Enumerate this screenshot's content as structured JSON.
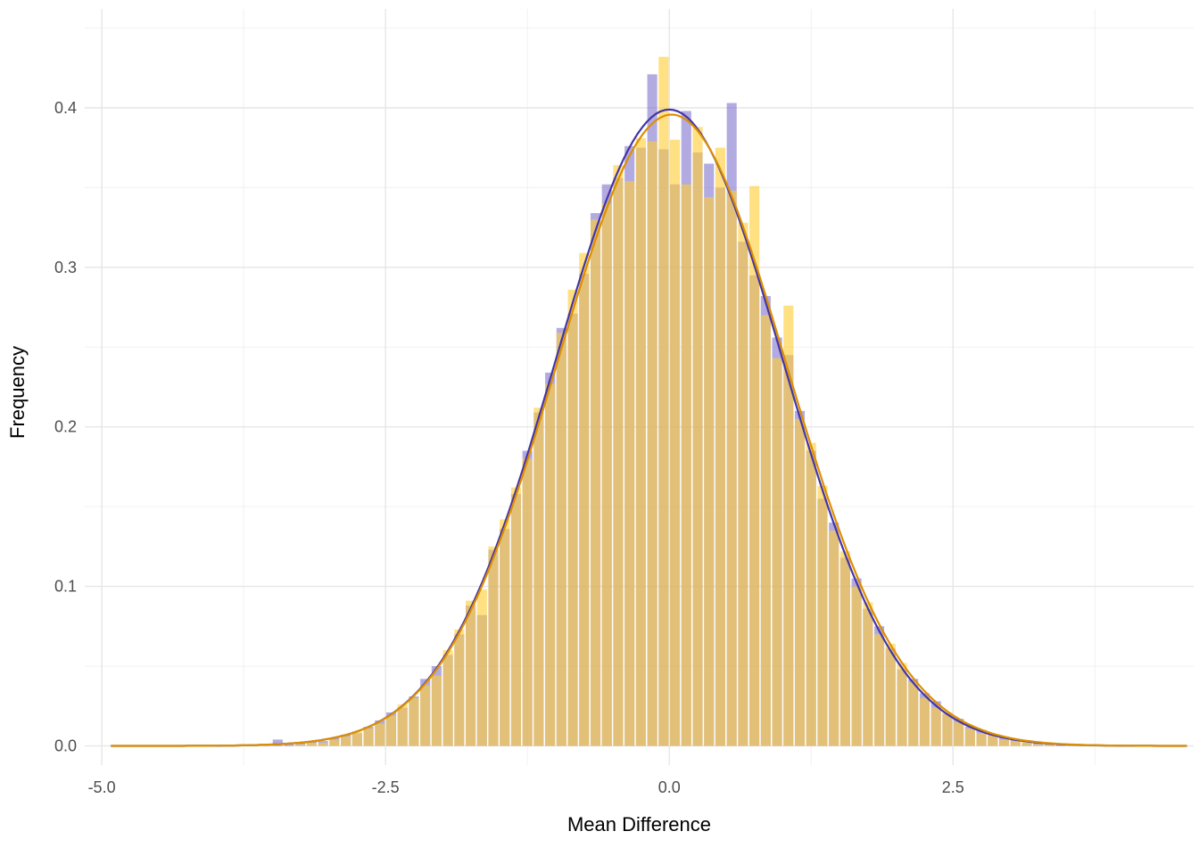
{
  "chart_data": {
    "type": "histogram",
    "title": "",
    "xlabel": "Mean Difference",
    "ylabel": "Frequency",
    "xlim": [
      -5.15,
      4.62
    ],
    "ylim": [
      -0.012,
      0.462
    ],
    "x_ticks": {
      "values": [
        -5.0,
        -2.5,
        0.0,
        2.5
      ],
      "labels": [
        "-5.0",
        "-2.5",
        "0.0",
        "2.5"
      ]
    },
    "y_ticks": {
      "values": [
        0.0,
        0.1,
        0.2,
        0.3,
        0.4
      ],
      "labels": [
        "0.0",
        "0.1",
        "0.2",
        "0.3",
        "0.4"
      ]
    },
    "x_minor": [
      -3.75,
      -1.25,
      1.25,
      3.75
    ],
    "y_minor": [
      0.05,
      0.15,
      0.25,
      0.35,
      0.45
    ],
    "grid": true,
    "grid_color": "#e4e4e4",
    "grid_minor_color": "#f1f1f1",
    "background": "#ffffff",
    "legend": "none",
    "bin_width": 0.1,
    "bin_centers": [
      -3.45,
      -3.35,
      -3.25,
      -3.15,
      -3.05,
      -2.95,
      -2.85,
      -2.75,
      -2.65,
      -2.55,
      -2.45,
      -2.35,
      -2.25,
      -2.15,
      -2.05,
      -1.95,
      -1.85,
      -1.75,
      -1.65,
      -1.55,
      -1.45,
      -1.35,
      -1.25,
      -1.15,
      -1.05,
      -0.95,
      -0.85,
      -0.75,
      -0.65,
      -0.55,
      -0.45,
      -0.35,
      -0.25,
      -0.15,
      -0.05,
      0.05,
      0.15,
      0.25,
      0.35,
      0.45,
      0.55,
      0.65,
      0.75,
      0.85,
      0.95,
      1.05,
      1.15,
      1.25,
      1.35,
      1.45,
      1.55,
      1.65,
      1.75,
      1.85,
      1.95,
      2.05,
      2.15,
      2.25,
      2.35,
      2.45,
      2.55,
      2.65,
      2.75,
      2.85,
      2.95,
      3.05,
      3.15,
      3.25,
      3.35,
      3.45
    ],
    "series": [
      {
        "name": "sample-purple",
        "color": "rgba(108,94,198,0.52)",
        "values": [
          0.004,
          0.001,
          0.002,
          0.003,
          0.003,
          0.005,
          0.007,
          0.008,
          0.012,
          0.016,
          0.021,
          0.024,
          0.031,
          0.042,
          0.05,
          0.057,
          0.07,
          0.088,
          0.082,
          0.123,
          0.136,
          0.158,
          0.185,
          0.209,
          0.234,
          0.262,
          0.271,
          0.296,
          0.334,
          0.352,
          0.356,
          0.376,
          0.375,
          0.421,
          0.374,
          0.352,
          0.398,
          0.372,
          0.365,
          0.35,
          0.403,
          0.316,
          0.295,
          0.282,
          0.256,
          0.245,
          0.21,
          0.185,
          0.155,
          0.14,
          0.118,
          0.105,
          0.086,
          0.075,
          0.061,
          0.048,
          0.042,
          0.033,
          0.028,
          0.02,
          0.017,
          0.012,
          0.01,
          0.007,
          0.005,
          0.004,
          0.002,
          0.002,
          0.001,
          0.001
        ]
      },
      {
        "name": "sample-yellow",
        "color": "rgba(255,205,55,0.62)",
        "values": [
          0,
          0,
          0.001,
          0.002,
          0.002,
          0.004,
          0.006,
          0.009,
          0.011,
          0.014,
          0.019,
          0.026,
          0.03,
          0.038,
          0.044,
          0.06,
          0.073,
          0.091,
          0.098,
          0.125,
          0.142,
          0.162,
          0.18,
          0.212,
          0.227,
          0.259,
          0.286,
          0.309,
          0.33,
          0.34,
          0.364,
          0.354,
          0.381,
          0.379,
          0.432,
          0.38,
          0.352,
          0.388,
          0.344,
          0.375,
          0.348,
          0.328,
          0.351,
          0.27,
          0.243,
          0.276,
          0.205,
          0.19,
          0.163,
          0.135,
          0.122,
          0.1,
          0.09,
          0.07,
          0.064,
          0.052,
          0.04,
          0.03,
          0.024,
          0.021,
          0.015,
          0.011,
          0.008,
          0.007,
          0.004,
          0.003,
          0.003,
          0.001,
          0.001,
          0
        ]
      }
    ],
    "curves": [
      {
        "name": "normal-density-purple",
        "color": "#4334a6",
        "mean": 0.0,
        "sd": 1.0,
        "stroke_width": 2.2,
        "x_start": -4.92,
        "x_end": 4.56
      },
      {
        "name": "normal-density-orange",
        "color": "#dd8f00",
        "mean": 0.02,
        "sd": 1.008,
        "stroke_width": 2.2,
        "x_start": -4.92,
        "x_end": 4.56
      }
    ],
    "tick_label_color": "#4d4d4d",
    "tick_font_size": 18,
    "title_font_size": 22
  }
}
